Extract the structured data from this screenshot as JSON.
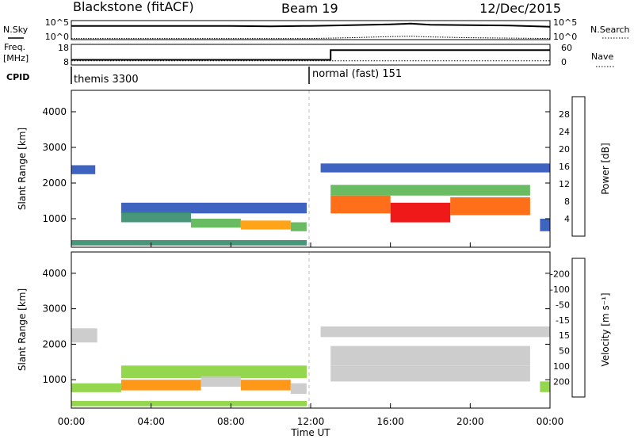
{
  "header": {
    "station": "Blackstone (fitACF)",
    "beam": "Beam 19",
    "date": "12/Dec/2015"
  },
  "side_labels": {
    "nsky": "N.Sky",
    "nsearch": "N.Search",
    "freq": "Freq.",
    "freq_unit": "[MHz]",
    "nave": "Nave",
    "cpid": "CPID"
  },
  "noise_axis": {
    "left_ticks": [
      "10^5",
      "10^0"
    ],
    "right_ticks": [
      "10^5",
      "10^0"
    ]
  },
  "freq_axis": {
    "left_ticks": [
      "18",
      "8"
    ],
    "right_ticks": [
      "60",
      "0"
    ]
  },
  "cpid_segments": [
    {
      "label": "themis 3300",
      "start_hour": 0
    },
    {
      "label": "normal (fast) 151",
      "start_hour": 12.0
    }
  ],
  "chart_data": [
    {
      "type": "line",
      "name": "noise",
      "x": [
        0,
        2,
        4,
        6,
        8,
        10,
        12,
        13,
        14,
        16,
        17,
        18,
        20,
        22,
        24
      ],
      "series": [
        {
          "values": [
            3.6,
            3.6,
            3.6,
            3.6,
            3.6,
            3.5,
            3.6,
            3.7,
            3.8,
            4.0,
            4.2,
            3.9,
            3.8,
            3.7,
            3.4
          ]
        },
        {
          "values": [
            0.3,
            0.3,
            0.3,
            0.3,
            0.3,
            0.3,
            0.3,
            0.4,
            0.5,
            0.8,
            0.9,
            0.7,
            0.5,
            0.4,
            0.3
          ]
        }
      ]
    },
    {
      "type": "line",
      "name": "frequency-nave",
      "x": [
        0,
        13.0,
        13.0,
        24
      ],
      "series": [
        {
          "values": [
            10.5,
            10.5,
            15.2,
            15.2
          ]
        },
        {
          "values": [
            12,
            12,
            12,
            12
          ]
        }
      ]
    },
    {
      "type": "heatmap",
      "ylabel": "Slant Range [km]",
      "yticks": [
        1000,
        2000,
        3000,
        4000
      ],
      "ylim": [
        200,
        4600
      ],
      "xlim": [
        0,
        24
      ],
      "colorbar": {
        "label": "Power [dB]",
        "ticks": [
          "4",
          "8",
          "12",
          "16",
          "20",
          "24",
          "28"
        ],
        "colors": [
          "#0000ff",
          "#2a52b9",
          "#348c6b",
          "#5ab552",
          "#f5e11a",
          "#ff9900",
          "#ff5f00",
          "#ee0000"
        ]
      },
      "echo_regions": [
        {
          "hours": [
            0.0,
            1.2
          ],
          "km": [
            2250,
            2500
          ],
          "level": 1
        },
        {
          "hours": [
            2.5,
            11.8
          ],
          "km": [
            1150,
            1450
          ],
          "level": 1
        },
        {
          "hours": [
            2.5,
            6.0
          ],
          "km": [
            900,
            1200
          ],
          "level": 2
        },
        {
          "hours": [
            6.0,
            8.5
          ],
          "km": [
            750,
            1000
          ],
          "level": 3
        },
        {
          "hours": [
            8.5,
            11.0
          ],
          "km": [
            700,
            950
          ],
          "level": 5
        },
        {
          "hours": [
            11.0,
            11.8
          ],
          "km": [
            650,
            900
          ],
          "level": 3
        },
        {
          "hours": [
            0.0,
            11.8
          ],
          "km": [
            250,
            400
          ],
          "level": 2
        },
        {
          "hours": [
            12.5,
            24
          ],
          "km": [
            2300,
            2550
          ],
          "level": 1
        },
        {
          "hours": [
            13.0,
            23.0
          ],
          "km": [
            1650,
            1950
          ],
          "level": 3
        },
        {
          "hours": [
            13.0,
            16.0
          ],
          "km": [
            1150,
            1650
          ],
          "level": 6
        },
        {
          "hours": [
            16.0,
            19.0
          ],
          "km": [
            900,
            1450
          ],
          "level": 7
        },
        {
          "hours": [
            19.0,
            23.0
          ],
          "km": [
            1100,
            1600
          ],
          "level": 6
        },
        {
          "hours": [
            23.5,
            24.0
          ],
          "km": [
            650,
            1000
          ],
          "level": 1
        }
      ]
    },
    {
      "type": "heatmap",
      "ylabel": "Slant Range [km]",
      "yticks": [
        1000,
        2000,
        3000,
        4000
      ],
      "ylim": [
        200,
        4600
      ],
      "xlim": [
        0,
        24
      ],
      "xticks": [
        "00:00",
        "04:00",
        "08:00",
        "12:00",
        "16:00",
        "20:00",
        "00:00"
      ],
      "xlabel": "Time UT",
      "colorbar": {
        "label": "Velocity [m s⁻¹]",
        "ticks": [
          "200",
          "100",
          "50",
          "15",
          "-15",
          "-50",
          "-100",
          "-200"
        ],
        "colors": [
          "#ff0000",
          "#ff5500",
          "#ff8c00",
          "#ffb300",
          "#c8c8c8",
          "#8ad23c",
          "#46b46e",
          "#3c8cb4",
          "#2832a0"
        ]
      },
      "echo_regions": [
        {
          "hours": [
            0.0,
            1.3
          ],
          "km": [
            2050,
            2450
          ],
          "level": 4
        },
        {
          "hours": [
            2.5,
            11.8
          ],
          "km": [
            1050,
            1400
          ],
          "level": 5
        },
        {
          "hours": [
            0.0,
            2.5
          ],
          "km": [
            650,
            900
          ],
          "level": 5
        },
        {
          "hours": [
            2.5,
            6.5
          ],
          "km": [
            700,
            1000
          ],
          "level": 2
        },
        {
          "hours": [
            6.5,
            8.5
          ],
          "km": [
            800,
            1100
          ],
          "level": 4
        },
        {
          "hours": [
            8.5,
            11.0
          ],
          "km": [
            700,
            1000
          ],
          "level": 2
        },
        {
          "hours": [
            11.0,
            11.8
          ],
          "km": [
            600,
            900
          ],
          "level": 4
        },
        {
          "hours": [
            0.0,
            11.8
          ],
          "km": [
            250,
            400
          ],
          "level": 5
        },
        {
          "hours": [
            13.0,
            23.0
          ],
          "km": [
            1400,
            1950
          ],
          "level": 4
        },
        {
          "hours": [
            13.0,
            23.0
          ],
          "km": [
            950,
            1400
          ],
          "level": 4
        },
        {
          "hours": [
            12.5,
            24
          ],
          "km": [
            2200,
            2500
          ],
          "level": 4
        },
        {
          "hours": [
            23.5,
            24.0
          ],
          "km": [
            650,
            950
          ],
          "level": 5
        }
      ]
    }
  ]
}
